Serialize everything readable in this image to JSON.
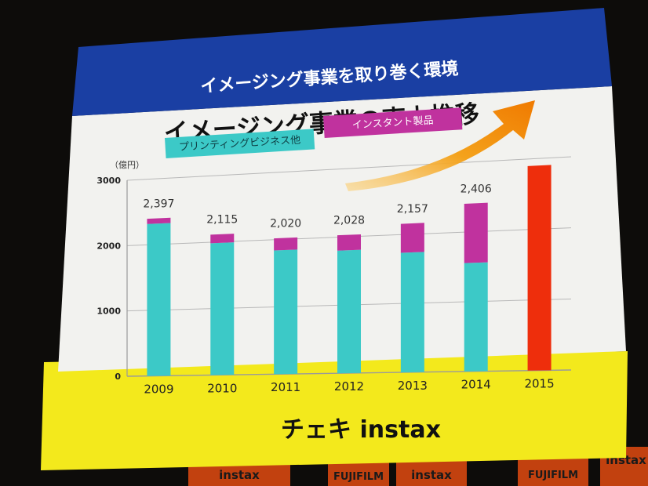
{
  "slide": {
    "banner_title": "イメージング事業を取り巻く環境",
    "chart_title": "イメージング事業の売上推移",
    "brand_logo_text": "チェキ instax",
    "background_banners": [
      "instax",
      "FUJIFILM",
      "instax",
      "FUJIFILM",
      "instax"
    ]
  },
  "chart_data": {
    "type": "bar",
    "stacked": true,
    "categories": [
      "2009",
      "2010",
      "2011",
      "2012",
      "2013",
      "2014",
      "2015"
    ],
    "series": [
      {
        "name": "プリンティングビジネス他",
        "color": "#3cc9c7",
        "values": [
          2317,
          1985,
          1840,
          1803,
          1737,
          1556,
          null
        ]
      },
      {
        "name": "インスタント製品",
        "color": "#c0329e",
        "values": [
          80,
          130,
          180,
          225,
          420,
          850,
          null
        ]
      },
      {
        "name": "",
        "color": "#ee2e0c",
        "values": [
          null,
          null,
          null,
          null,
          null,
          null,
          2900
        ]
      }
    ],
    "totals": [
      "2,397",
      "2,115",
      "2,020",
      "2,028",
      "2,157",
      "2,406",
      ""
    ],
    "ylabel": "（億円）",
    "ylim": [
      0,
      3000
    ],
    "yticks": [
      "0",
      "1000",
      "2000",
      "3000"
    ],
    "grid": true,
    "legend": "top-left",
    "annotation": "orange upward trend arrow"
  }
}
